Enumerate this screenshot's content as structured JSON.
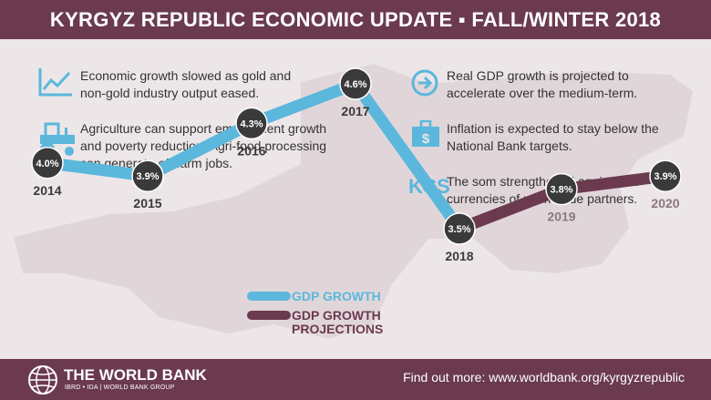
{
  "header": {
    "title": "KYRGYZ REPUBLIC ECONOMIC UPDATE ▪ FALL/WINTER 2018"
  },
  "facts": {
    "left": [
      {
        "icon": "line-chart-icon",
        "text": "Economic growth slowed as gold and non-gold industry output eased."
      },
      {
        "icon": "tractor-icon",
        "text": "Agriculture can support employment growth and poverty reduction. Agri-food processing can generate off-farm jobs."
      }
    ],
    "right": [
      {
        "icon": "arrow-right-circle-icon",
        "text": "Real GDP growth is projected to accelerate over the medium-term."
      },
      {
        "icon": "briefcase-dollar-icon",
        "text": "Inflation is expected to stay below the National Bank targets."
      },
      {
        "icon": "KGS",
        "text": "The som strengthened against the currencies of main trade partners."
      }
    ]
  },
  "chart_data": {
    "type": "line",
    "x": [
      "2014",
      "2015",
      "2016",
      "2017",
      "2018",
      "2019",
      "2020"
    ],
    "series": [
      {
        "name": "GDP GROWTH",
        "color": "#5bb7dc",
        "values": [
          4.0,
          3.9,
          4.3,
          4.6,
          3.5,
          null,
          null
        ]
      },
      {
        "name": "GDP GROWTH PROJECTIONS",
        "color": "#6b3a4f",
        "values": [
          null,
          null,
          null,
          null,
          3.5,
          3.8,
          3.9
        ]
      }
    ],
    "data_labels": [
      "4.0%",
      "3.9%",
      "4.3%",
      "4.6%",
      "3.5%",
      "3.8%",
      "3.9%"
    ],
    "title": "",
    "xlabel": "",
    "ylabel": "",
    "grid": false
  },
  "footer": {
    "org_name": "THE WORLD BANK",
    "org_sub": "IBRD • IDA | WORLD BANK GROUP",
    "find_out": "Find out more: www.worldbank.org/kyrgyzrepublic"
  },
  "colors": {
    "accent": "#6b3a4f",
    "blue": "#5bb7dc",
    "marker": "#3a3a3a",
    "background": "#ece6e8"
  }
}
